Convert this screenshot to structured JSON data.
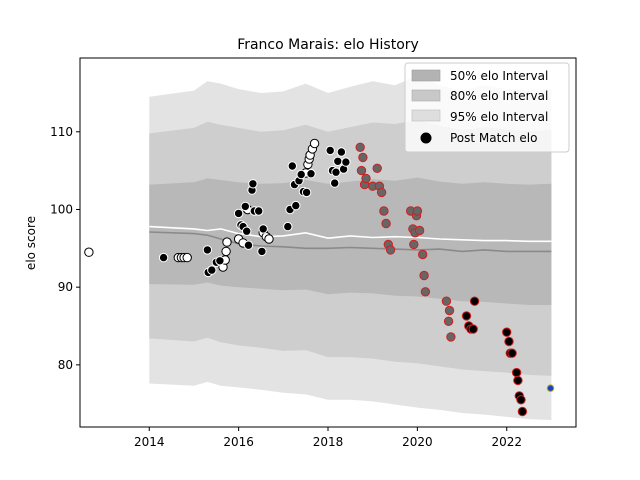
{
  "chart_data": {
    "type": "scatter",
    "title": "Franco Marais: elo History",
    "xlabel": "",
    "ylabel": "elo score",
    "xlim": [
      2012.45,
      2023.55
    ],
    "ylim": [
      72,
      119.5
    ],
    "xticks": [
      2014,
      2016,
      2018,
      2020,
      2022
    ],
    "yticks": [
      80,
      90,
      100,
      110
    ],
    "legend": {
      "position": "top-right",
      "entries": [
        "50% elo Interval",
        "80% elo Interval",
        "95% elo Interval",
        "Post Match elo"
      ]
    },
    "colors": {
      "band95": "#e3e3e3",
      "band80": "#cecece",
      "band50": "#b8b8b8",
      "median": "#8a8a8a",
      "mean": "#ffffff",
      "point_fill_white": "#ffffff",
      "point_fill_black": "#000000",
      "point_fill_gray": "#666666",
      "edge_black": "#000000",
      "edge_red": "#d21e1e",
      "latest_fill": "#1f3fcf",
      "latest_edge": "#b8b800"
    },
    "bands": {
      "x": [
        2014.0,
        2015.0,
        2015.3,
        2015.6,
        2016.0,
        2016.5,
        2017.0,
        2017.5,
        2018.0,
        2018.5,
        2019.0,
        2019.5,
        2020.0,
        2020.5,
        2021.0,
        2021.5,
        2022.0,
        2022.5,
        2023.0
      ],
      "p95_high": [
        114.5,
        115.3,
        116.5,
        116.2,
        115.5,
        115.0,
        115.2,
        116.2,
        115.0,
        115.8,
        116.5,
        116.0,
        117.2,
        116.0,
        115.3,
        116.0,
        115.5,
        115.3,
        115.5
      ],
      "p80_high": [
        109.8,
        110.5,
        111.3,
        110.9,
        110.5,
        110.0,
        110.2,
        110.9,
        110.0,
        110.6,
        111.2,
        111.0,
        111.5,
        110.8,
        110.2,
        110.6,
        110.3,
        110.1,
        110.2
      ],
      "p50_high": [
        103.2,
        103.5,
        104.0,
        103.8,
        103.5,
        103.3,
        103.4,
        103.8,
        103.3,
        103.6,
        103.9,
        103.7,
        104.1,
        103.6,
        103.3,
        103.5,
        103.3,
        103.2,
        103.3
      ],
      "p50_low": [
        90.4,
        90.3,
        90.6,
        90.2,
        90.0,
        89.8,
        89.6,
        89.7,
        89.1,
        89.3,
        89.2,
        88.9,
        88.8,
        88.5,
        88.2,
        88.1,
        87.9,
        87.7,
        87.7
      ],
      "p80_low": [
        83.4,
        83.0,
        83.5,
        82.9,
        82.5,
        82.2,
        81.8,
        81.9,
        81.0,
        81.0,
        80.8,
        80.4,
        80.2,
        79.8,
        79.4,
        79.2,
        79.0,
        78.7,
        78.6
      ],
      "p95_low": [
        77.6,
        77.3,
        77.8,
        77.3,
        77.1,
        76.8,
        76.4,
        76.2,
        75.5,
        75.5,
        75.3,
        74.9,
        74.5,
        74.2,
        73.8,
        73.6,
        73.3,
        73.0,
        72.9
      ],
      "median": [
        97.1,
        96.9,
        96.7,
        96.2,
        95.6,
        95.3,
        95.2,
        95.0,
        95.0,
        95.1,
        95.0,
        94.9,
        94.8,
        94.9,
        94.6,
        94.8,
        94.6,
        94.6,
        94.6
      ],
      "mean": [
        97.8,
        97.5,
        97.3,
        97.5,
        96.9,
        96.5,
        96.6,
        97.0,
        96.3,
        96.6,
        96.4,
        96.5,
        96.4,
        96.2,
        96.1,
        96.0,
        96.0,
        95.9,
        95.9
      ]
    },
    "series": [
      {
        "fill": "white",
        "edge": "black",
        "points": [
          [
            2012.65,
            94.5
          ],
          [
            2014.65,
            93.8
          ],
          [
            2014.72,
            93.8
          ],
          [
            2014.78,
            93.8
          ],
          [
            2014.85,
            93.8
          ],
          [
            2015.65,
            92.6
          ],
          [
            2015.7,
            93.5
          ],
          [
            2015.72,
            94.6
          ],
          [
            2015.74,
            95.8
          ],
          [
            2016.0,
            96.2
          ],
          [
            2016.1,
            95.7
          ],
          [
            2016.2,
            100.0
          ],
          [
            2016.55,
            97.0
          ],
          [
            2016.62,
            96.5
          ],
          [
            2016.68,
            96.2
          ],
          [
            2017.5,
            104.7
          ],
          [
            2017.55,
            105.8
          ],
          [
            2017.58,
            106.5
          ],
          [
            2017.6,
            107.0
          ],
          [
            2017.65,
            107.8
          ],
          [
            2017.7,
            108.5
          ]
        ]
      },
      {
        "fill": "black",
        "edge": "white",
        "points": [
          [
            2014.32,
            93.8
          ],
          [
            2015.3,
            94.8
          ],
          [
            2015.32,
            91.9
          ],
          [
            2015.4,
            92.2
          ],
          [
            2015.5,
            93.2
          ],
          [
            2015.58,
            93.4
          ],
          [
            2016.0,
            99.5
          ],
          [
            2016.05,
            98.0
          ],
          [
            2016.1,
            97.8
          ],
          [
            2016.15,
            100.4
          ],
          [
            2016.18,
            97.2
          ],
          [
            2016.22,
            95.4
          ],
          [
            2016.3,
            102.5
          ],
          [
            2016.32,
            103.3
          ],
          [
            2016.35,
            99.8
          ],
          [
            2016.45,
            99.8
          ],
          [
            2016.52,
            94.6
          ],
          [
            2016.55,
            97.5
          ],
          [
            2017.1,
            97.8
          ],
          [
            2017.15,
            100.0
          ],
          [
            2017.2,
            105.6
          ],
          [
            2017.25,
            103.2
          ],
          [
            2017.28,
            100.5
          ],
          [
            2017.35,
            103.7
          ],
          [
            2017.4,
            104.5
          ],
          [
            2017.45,
            102.3
          ],
          [
            2017.52,
            102.2
          ],
          [
            2017.62,
            104.6
          ],
          [
            2018.05,
            107.6
          ],
          [
            2018.1,
            105.0
          ],
          [
            2018.15,
            103.4
          ],
          [
            2018.18,
            104.8
          ],
          [
            2018.22,
            106.2
          ],
          [
            2018.3,
            107.4
          ],
          [
            2018.35,
            105.2
          ],
          [
            2018.4,
            106.1
          ]
        ]
      },
      {
        "fill": "gray",
        "edge": "red",
        "points": [
          [
            2018.72,
            108.0
          ],
          [
            2018.75,
            105.0
          ],
          [
            2018.78,
            106.7
          ],
          [
            2018.82,
            103.2
          ],
          [
            2018.85,
            104.0
          ],
          [
            2019.0,
            103.0
          ],
          [
            2019.1,
            105.3
          ],
          [
            2019.15,
            103.0
          ],
          [
            2019.2,
            102.2
          ],
          [
            2019.25,
            99.8
          ],
          [
            2019.3,
            98.2
          ],
          [
            2019.35,
            95.5
          ],
          [
            2019.4,
            94.8
          ],
          [
            2019.85,
            99.8
          ],
          [
            2019.9,
            97.5
          ],
          [
            2019.92,
            95.5
          ],
          [
            2019.95,
            97.0
          ],
          [
            2019.98,
            99.2
          ],
          [
            2020.0,
            99.8
          ],
          [
            2020.05,
            97.3
          ],
          [
            2020.12,
            94.2
          ],
          [
            2020.15,
            91.5
          ],
          [
            2020.18,
            89.4
          ],
          [
            2020.65,
            88.2
          ],
          [
            2020.7,
            85.6
          ],
          [
            2020.72,
            87.0
          ],
          [
            2020.75,
            83.6
          ]
        ]
      },
      {
        "fill": "black",
        "edge": "red",
        "points": [
          [
            2021.1,
            86.3
          ],
          [
            2021.15,
            85.0
          ],
          [
            2021.2,
            84.6
          ],
          [
            2021.25,
            84.6
          ],
          [
            2021.28,
            88.2
          ],
          [
            2022.0,
            84.2
          ],
          [
            2022.05,
            83.0
          ],
          [
            2022.08,
            81.5
          ],
          [
            2022.12,
            81.5
          ],
          [
            2022.22,
            79.0
          ],
          [
            2022.25,
            78.0
          ],
          [
            2022.28,
            76.0
          ],
          [
            2022.32,
            75.5
          ],
          [
            2022.35,
            74.0
          ]
        ]
      },
      {
        "fill": "blue",
        "edge": "yellow",
        "points": [
          [
            2022.98,
            77.0
          ]
        ]
      }
    ]
  }
}
